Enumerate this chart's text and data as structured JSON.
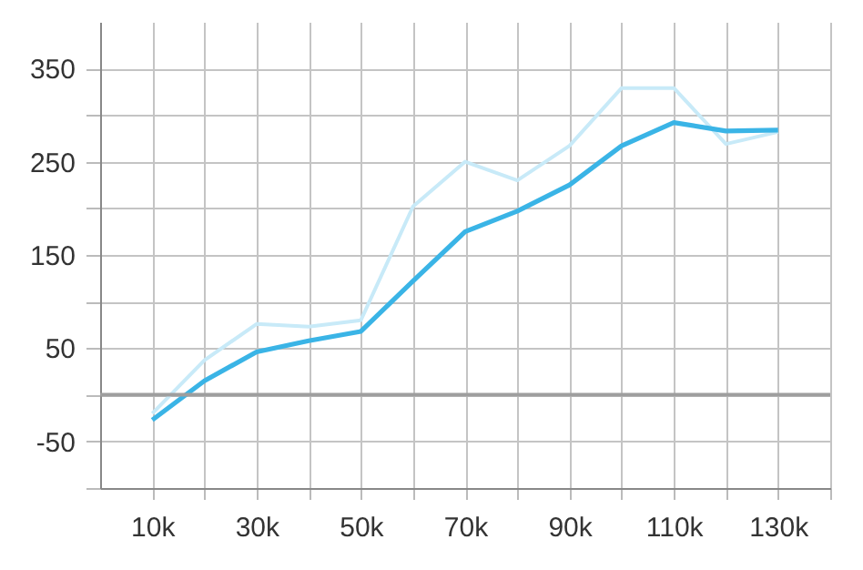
{
  "chart_data": {
    "type": "line",
    "x": [
      10000,
      20000,
      30000,
      40000,
      50000,
      60000,
      70000,
      80000,
      90000,
      100000,
      110000,
      120000,
      130000
    ],
    "series": [
      {
        "color": "#c8eaf8",
        "values": [
          -20,
          37,
          76,
          73,
          80,
          202,
          250,
          230,
          267,
          329,
          329,
          269,
          282
        ]
      },
      {
        "color": "#3ab4e6",
        "values": [
          -27,
          15,
          46,
          58,
          68,
          122,
          175,
          197,
          225,
          267,
          292,
          283,
          284
        ]
      }
    ],
    "xlim": [
      0,
      140000
    ],
    "xticks": [
      {
        "value": 10000,
        "label": "10k"
      },
      {
        "value": 20000,
        "label": null
      },
      {
        "value": 30000,
        "label": "30k"
      },
      {
        "value": 40000,
        "label": null
      },
      {
        "value": 50000,
        "label": "50k"
      },
      {
        "value": 60000,
        "label": null
      },
      {
        "value": 70000,
        "label": "70k"
      },
      {
        "value": 80000,
        "label": null
      },
      {
        "value": 90000,
        "label": "90k"
      },
      {
        "value": 100000,
        "label": null
      },
      {
        "value": 110000,
        "label": "110k"
      },
      {
        "value": 120000,
        "label": null
      },
      {
        "value": 130000,
        "label": "130k"
      },
      {
        "value": 140000,
        "label": null
      }
    ],
    "ylim": [
      -100,
      400
    ],
    "yticks": [
      {
        "value": -100,
        "label": null
      },
      -50,
      {
        "value": 0,
        "label": null
      },
      50,
      {
        "value": 100,
        "label": null
      },
      150,
      {
        "value": 200,
        "label": null
      },
      250,
      {
        "value": 300,
        "label": null
      },
      350
    ],
    "grid": true,
    "marker": "none",
    "ref_lines": [
      {
        "axis": "y",
        "value": 0,
        "color": "#9e9e9e"
      }
    ]
  }
}
